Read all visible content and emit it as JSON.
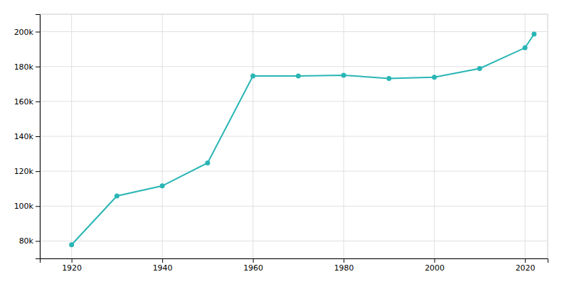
{
  "chart_data": {
    "type": "line",
    "x": [
      1920,
      1930,
      1940,
      1950,
      1960,
      1970,
      1980,
      1990,
      2000,
      2010,
      2020,
      2022
    ],
    "values": [
      77818,
      105802,
      111580,
      124769,
      174587,
      174587,
      175030,
      173210,
      173890,
      178874,
      190740,
      198633
    ],
    "color": "#2ab5b5",
    "marker": "circle",
    "xlim": [
      1913,
      2025
    ],
    "ylim": [
      70000,
      210000
    ],
    "xticks": [
      1920,
      1940,
      1960,
      1980,
      2000,
      2020
    ],
    "yticks": [
      {
        "value": 80000,
        "label": "80k"
      },
      {
        "value": 100000,
        "label": "100k"
      },
      {
        "value": 120000,
        "label": "120k"
      },
      {
        "value": 140000,
        "label": "140k"
      },
      {
        "value": 160000,
        "label": "160k"
      },
      {
        "value": 180000,
        "label": "180k"
      },
      {
        "value": 200000,
        "label": "200k"
      }
    ],
    "grid": true
  }
}
